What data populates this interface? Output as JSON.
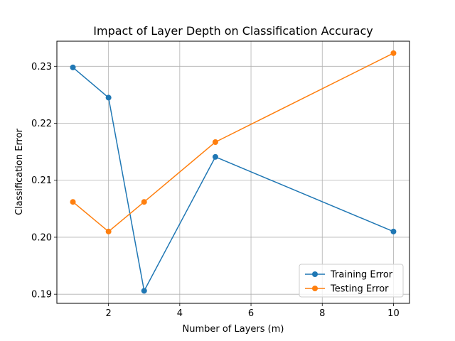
{
  "chart_data": {
    "type": "line",
    "title": "Impact of Layer Depth on Classification Accuracy",
    "xlabel": "Number of Layers (m)",
    "ylabel": "Classification Error",
    "xlim": [
      0.55,
      10.45
    ],
    "ylim": [
      0.1884,
      0.2344
    ],
    "xticks": [
      2,
      4,
      6,
      8,
      10
    ],
    "yticks": [
      0.19,
      0.2,
      0.21,
      0.22,
      0.23
    ],
    "xtick_labels": [
      "2",
      "4",
      "6",
      "8",
      "10"
    ],
    "ytick_labels": [
      "0.19",
      "0.20",
      "0.21",
      "0.22",
      "0.23"
    ],
    "grid": true,
    "legend_position": "bottom-right",
    "x": [
      1,
      2,
      3,
      5,
      10
    ],
    "series": [
      {
        "name": "Training Error",
        "color": "#1f77b4",
        "values": [
          0.2298,
          0.2245,
          0.1906,
          0.2141,
          0.201
        ]
      },
      {
        "name": "Testing Error",
        "color": "#ff7f0e",
        "values": [
          0.2062,
          0.201,
          0.2062,
          0.2167,
          0.2323
        ]
      }
    ]
  }
}
